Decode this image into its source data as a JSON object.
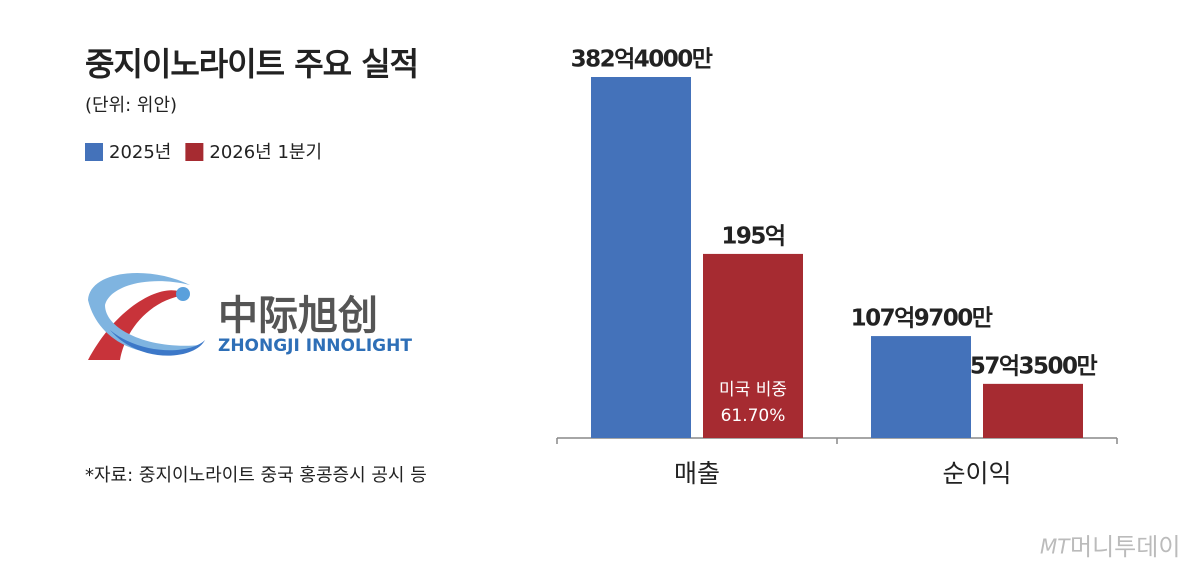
{
  "chart_data": {
    "type": "bar",
    "title": "중지이노라이트 주요 실적",
    "subtitle": "(단위: 위안)",
    "categories": [
      "매출",
      "순이익"
    ],
    "series": [
      {
        "name": "2025년",
        "color": "#4472ba",
        "values": [
          382.4,
          107.97
        ],
        "value_labels": [
          "382억4000만",
          "107억9700만"
        ]
      },
      {
        "name": "2026년 1분기",
        "color": "#a62b31",
        "values": [
          195,
          57.35
        ],
        "value_labels": [
          "195억",
          "57억3500만"
        ]
      }
    ],
    "annotation_lines": [
      "미국 비중",
      "61.70%"
    ]
  },
  "logo": {
    "chinese": "中际旭创",
    "english": "ZHONGJI INNOLIGHT"
  },
  "source": "*자료: 중지이노라이트 중국 홍콩증시 공시 등",
  "watermark": {
    "mark": "MT",
    "text": "머니투데이"
  }
}
